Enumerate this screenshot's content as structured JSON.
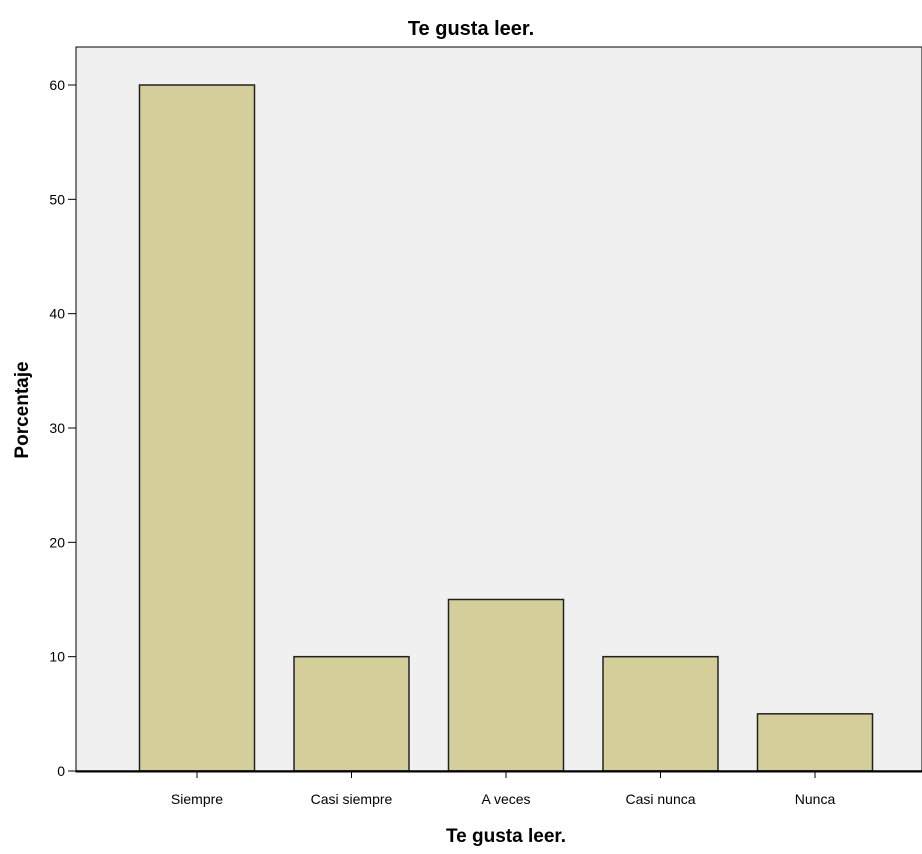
{
  "chart_data": {
    "type": "bar",
    "title": "Te gusta leer.",
    "xlabel": "Te gusta leer.",
    "ylabel": "Porcentaje",
    "categories": [
      "Siempre",
      "Casi siempre",
      "A veces",
      "Casi nunca",
      "Nunca"
    ],
    "values": [
      60,
      10,
      15,
      10,
      5
    ],
    "ylim": [
      0,
      63
    ],
    "yticks": [
      0,
      10,
      20,
      30,
      40,
      50,
      60
    ],
    "grid": false,
    "colors": {
      "bar_fill": "#d4cf9a",
      "bar_stroke": "#222222",
      "plot_background": "#f0f0f0",
      "axis": "#000000"
    }
  }
}
